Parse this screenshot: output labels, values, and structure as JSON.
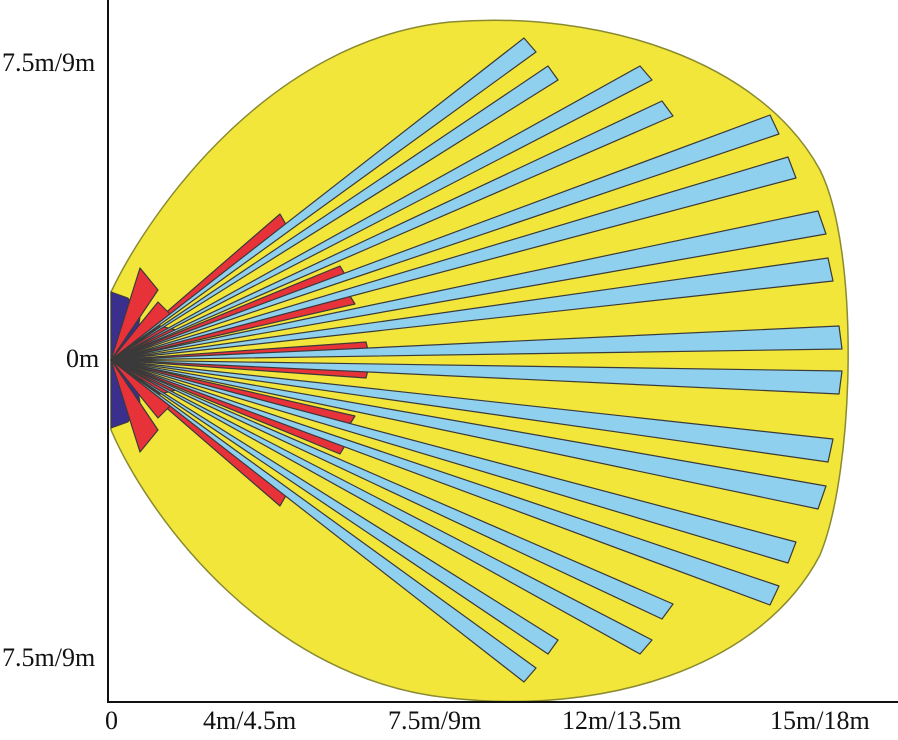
{
  "diagram": {
    "colors": {
      "coverage_area": "#f2e63a",
      "coverage_outline": "#8a8a30",
      "long_range_beam": "#8fd0ee",
      "mid_range_beam": "#e8323a",
      "creep_zone": "#3a2f8c",
      "beam_outline": "#3a3a3a",
      "axis": "#111111"
    },
    "axis_labels": {
      "y_top": "7.5m/9m",
      "y_middle": "0m",
      "y_bottom": "7.5m/9m",
      "x": [
        "0",
        "4m/4.5m",
        "7.5m/9m",
        "12m/13.5m",
        "15m/18m"
      ]
    }
  }
}
